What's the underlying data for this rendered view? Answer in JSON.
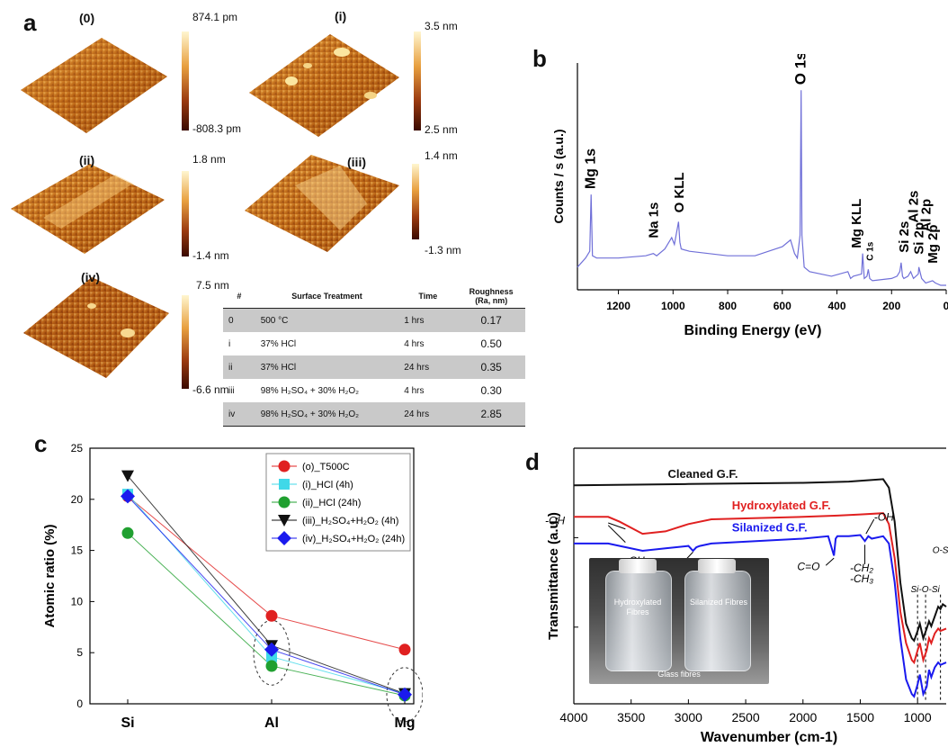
{
  "panel_labels": {
    "a": "a",
    "b": "b",
    "c": "c",
    "d": "d"
  },
  "panel_a": {
    "images": [
      {
        "label": "(0)",
        "cbar_top": "874.1 pm",
        "cbar_bottom": "-808.3 pm"
      },
      {
        "label": "(i)",
        "cbar_top": "3.5 nm",
        "cbar_bottom": "2.5 nm"
      },
      {
        "label": "(ii)",
        "cbar_top": "1.8 nm",
        "cbar_bottom": "-1.4 nm"
      },
      {
        "label": "(iii)",
        "cbar_top": "1.4 nm",
        "cbar_bottom": "-1.3 nm"
      },
      {
        "label": "(iv)",
        "cbar_top": "7.5 nm",
        "cbar_bottom": "-6.6 nm"
      }
    ],
    "table": {
      "headers": [
        "#",
        "Surface Treatment",
        "Time",
        "Roughness (Ra, nm)"
      ],
      "rows": [
        {
          "id": "0",
          "treatment": "500 °C",
          "time": "1 hrs",
          "ra": "0.17"
        },
        {
          "id": "i",
          "treatment": "37% HCl",
          "time": "4 hrs",
          "ra": "0.50"
        },
        {
          "id": "ii",
          "treatment": "37% HCl",
          "time": "24 hrs",
          "ra": "0.35"
        },
        {
          "id": "iii",
          "treatment": "98% H₂SO₄ + 30% H₂O₂",
          "time": "4 hrs",
          "ra": "0.30"
        },
        {
          "id": "iv",
          "treatment": "98% H₂SO₄ + 30% H₂O₂",
          "time": "24 hrs",
          "ra": "2.85"
        }
      ]
    }
  },
  "chart_data": [
    {
      "panel": "b",
      "type": "line",
      "xlabel": "Binding Energy (eV)",
      "ylabel": "Counts / s (a.u.)",
      "xlim": [
        1350,
        0
      ],
      "x_ticks": [
        "1200",
        "1000",
        "800",
        "600",
        "400",
        "200",
        "0"
      ],
      "x_tick_values": [
        1200,
        1000,
        800,
        600,
        400,
        200,
        0
      ],
      "line_color": "#7070d8",
      "spectrum": {
        "x": [
          1350,
          1320,
          1305,
          1300,
          1295,
          1280,
          1200,
          1100,
          1072,
          1060,
          1030,
          1005,
          995,
          980,
          975,
          970,
          940,
          800,
          700,
          600,
          570,
          555,
          545,
          535,
          531,
          528,
          520,
          500,
          420,
          360,
          350,
          340,
          310,
          306,
          300,
          290,
          285,
          280,
          270,
          200,
          180,
          170,
          165,
          160,
          155,
          140,
          130,
          120,
          102,
          100,
          90,
          75,
          50,
          40,
          20,
          0
        ],
        "y": [
          0.1,
          0.14,
          0.17,
          0.42,
          0.15,
          0.14,
          0.14,
          0.15,
          0.16,
          0.15,
          0.18,
          0.23,
          0.2,
          0.3,
          0.21,
          0.18,
          0.17,
          0.15,
          0.15,
          0.19,
          0.22,
          0.16,
          0.14,
          0.24,
          0.88,
          0.24,
          0.1,
          0.08,
          0.06,
          0.08,
          0.05,
          0.06,
          0.07,
          0.16,
          0.05,
          0.06,
          0.09,
          0.05,
          0.04,
          0.05,
          0.06,
          0.08,
          0.12,
          0.06,
          0.05,
          0.06,
          0.08,
          0.05,
          0.07,
          0.1,
          0.05,
          0.03,
          0.04,
          0.03,
          0.02,
          0.02
        ]
      },
      "annotations": [
        {
          "text": "Mg 1s",
          "x": 1303
        },
        {
          "text": "Na 1s",
          "x": 1072
        },
        {
          "text": "O KLL",
          "x": 978
        },
        {
          "text": "O 1s",
          "x": 531
        },
        {
          "text": "Mg KLL",
          "x": 330
        },
        {
          "text": "C 1s",
          "x": 285
        },
        {
          "text": "Si 2s",
          "x": 155
        },
        {
          "text": "Al 2s",
          "x": 120
        },
        {
          "text": "Si 2p",
          "x": 100
        },
        {
          "text": "Al 2p",
          "x": 74
        },
        {
          "text": "Mg 2p",
          "x": 50
        }
      ]
    },
    {
      "panel": "c",
      "type": "line",
      "ylabel": "Atomic ratio (%)",
      "categories": [
        "Si",
        "Al",
        "Mg"
      ],
      "ylim": [
        0,
        25
      ],
      "y_ticks": [
        0,
        5,
        10,
        15,
        20,
        25
      ],
      "legend_position": "top-right",
      "series": [
        {
          "name": "(o)_T500C",
          "color": "#e02020",
          "marker": "circle",
          "values": [
            20.3,
            8.6,
            5.3
          ]
        },
        {
          "name": "(i)_HCl (4h)",
          "color": "#40d8e8",
          "marker": "square",
          "values": [
            20.5,
            4.6,
            1.0
          ]
        },
        {
          "name": "(ii)_HCl (24h)",
          "color": "#20a030",
          "marker": "circle",
          "values": [
            16.7,
            3.7,
            0.8
          ]
        },
        {
          "name": "(iii)_H₂SO₄+H₂O₂ (4h)",
          "color": "#111111",
          "marker": "triangle-down",
          "values": [
            22.3,
            5.7,
            1.0
          ]
        },
        {
          "name": "(iv)_H₂SO₄+H₂O₂ (24h)",
          "color": "#1a1aee",
          "marker": "diamond",
          "values": [
            20.3,
            5.3,
            0.9
          ]
        }
      ]
    },
    {
      "panel": "d",
      "type": "line",
      "xlabel": "Wavenumber (cm-1)",
      "ylabel": "Transmittance (a.u.)",
      "xlim": [
        4000,
        750
      ],
      "x_ticks": [
        "4000",
        "3500",
        "3000",
        "2500",
        "2000",
        "1500",
        "1000"
      ],
      "x_tick_values": [
        4000,
        3500,
        3000,
        2500,
        2000,
        1500,
        1000
      ],
      "series": [
        {
          "name": "Cleaned G.F.",
          "color": "#111111",
          "x": [
            4000,
            3000,
            2000,
            1600,
            1300,
            1250,
            1200,
            1150,
            1100,
            1050,
            1030,
            1000,
            980,
            950,
            920,
            900,
            880,
            850,
            820,
            800,
            780,
            750
          ],
          "y": [
            0.9,
            0.905,
            0.91,
            0.915,
            0.925,
            0.89,
            0.75,
            0.5,
            0.33,
            0.27,
            0.26,
            0.3,
            0.33,
            0.27,
            0.31,
            0.34,
            0.32,
            0.36,
            0.4,
            0.39,
            0.41,
            0.4
          ]
        },
        {
          "name": "Hydroxylated G.F.",
          "color": "#e02020",
          "x": [
            4000,
            3700,
            3600,
            3400,
            3200,
            3000,
            2800,
            2000,
            1700,
            1500,
            1300,
            1250,
            1200,
            1150,
            1100,
            1050,
            1030,
            1000,
            980,
            950,
            920,
            900,
            880,
            850,
            820,
            800,
            750
          ],
          "y": [
            0.77,
            0.77,
            0.75,
            0.7,
            0.71,
            0.74,
            0.76,
            0.77,
            0.775,
            0.78,
            0.785,
            0.74,
            0.6,
            0.38,
            0.25,
            0.18,
            0.17,
            0.22,
            0.25,
            0.18,
            0.22,
            0.27,
            0.25,
            0.29,
            0.31,
            0.3,
            0.31
          ]
        },
        {
          "name": "Silanized G.F.",
          "color": "#1a1aee",
          "x": [
            4000,
            3700,
            3600,
            3400,
            3200,
            3000,
            2960,
            2930,
            2900,
            2800,
            2000,
            1780,
            1730,
            1715,
            1700,
            1600,
            1500,
            1460,
            1430,
            1400,
            1300,
            1250,
            1200,
            1150,
            1100,
            1050,
            1030,
            1000,
            980,
            950,
            920,
            900,
            880,
            850,
            820,
            800,
            750
          ],
          "y": [
            0.66,
            0.66,
            0.65,
            0.63,
            0.64,
            0.65,
            0.63,
            0.645,
            0.65,
            0.66,
            0.68,
            0.69,
            0.61,
            0.68,
            0.69,
            0.69,
            0.695,
            0.67,
            0.69,
            0.68,
            0.69,
            0.66,
            0.5,
            0.27,
            0.1,
            0.04,
            0.03,
            0.08,
            0.12,
            0.04,
            0.07,
            0.14,
            0.11,
            0.15,
            0.17,
            0.16,
            0.17
          ]
        }
      ],
      "annotations": [
        "-OH",
        "-CH₂",
        "-CH₃",
        "C=O",
        "-OH",
        "-CH₂",
        "-CH₃",
        "Si-O-Si",
        "O-Si-O"
      ],
      "inset_photo": {
        "labels": [
          "Hydroxylated Fibres",
          "Silanized Fibres",
          "Glass fibres"
        ]
      }
    }
  ]
}
